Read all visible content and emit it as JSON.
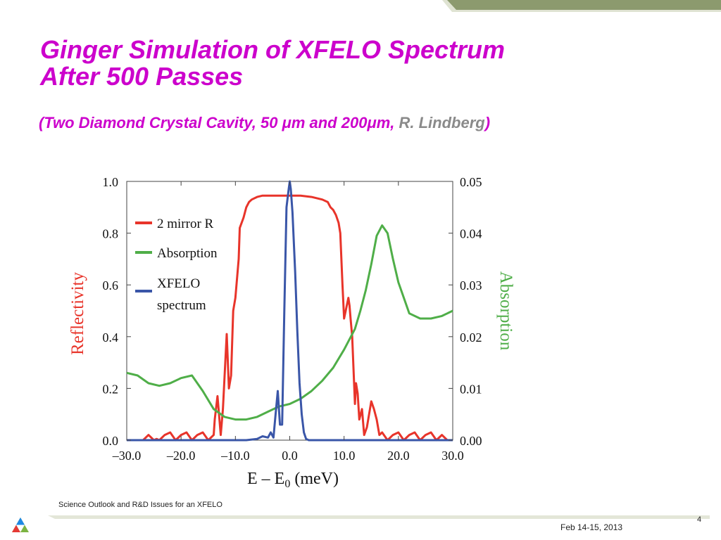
{
  "slide": {
    "title_line1": "Ginger Simulation of XFELO Spectrum",
    "title_line2": "After 500 Passes",
    "subtitle_open": "(",
    "subtitle_main": "Two Diamond Crystal Cavity, 50 μm and 200μm, ",
    "subtitle_author": "R. Lindberg",
    "subtitle_close": ")",
    "footer_text": "Science Outlook and R&D Issues for an XFELO",
    "footer_date": "Feb 14-15, 2013",
    "page_number": "4"
  },
  "colors": {
    "title": "#cc00cc",
    "reflectivity": "#e8342a",
    "absorption": "#4fae48",
    "spectrum": "#3a56a8",
    "top_bar": "#8c9a6e"
  },
  "chart_data": {
    "type": "line",
    "xlabel_main": "E – E",
    "xlabel_sub": "0",
    "xlabel_unit": " (meV)",
    "ylabel_left": "Reflectivity",
    "ylabel_right": "Absorption",
    "xlim": [
      -30,
      30
    ],
    "ylim_left": [
      0,
      1
    ],
    "ylim_right": [
      0,
      0.05
    ],
    "xticks": [
      "–30.0",
      "–20.0",
      "–10.0",
      "0.0",
      "10.0",
      "20.0",
      "30.0"
    ],
    "yticks_left": [
      "0.0",
      "0.2",
      "0.4",
      "0.6",
      "0.8",
      "1.0"
    ],
    "yticks_right": [
      "0.00",
      "0.01",
      "0.02",
      "0.03",
      "0.04",
      "0.05"
    ],
    "legend_position": "top-left",
    "legend": [
      {
        "label": "2 mirror R",
        "color": "#e8342a"
      },
      {
        "label": "Absorption",
        "color": "#4fae48"
      },
      {
        "label_line1": "XFELO",
        "label_line2": "spectrum",
        "color": "#3a56a8"
      }
    ],
    "series": [
      {
        "name": "2 mirror R",
        "axis": "left",
        "color": "#e8342a",
        "x": [
          -30,
          -27,
          -26,
          -25,
          -24.5,
          -24,
          -23,
          -22,
          -21,
          -20,
          -19,
          -18,
          -17,
          -16,
          -15,
          -14,
          -13.8,
          -13.3,
          -12.7,
          -12.3,
          -11.6,
          -11.2,
          -10.8,
          -10.4,
          -10,
          -9.4,
          -9.2,
          -8.5,
          -8,
          -7.5,
          -7,
          -6,
          -5,
          -4,
          -2,
          0,
          2,
          4,
          6,
          7,
          7.5,
          8,
          8.5,
          9,
          9.3,
          9.7,
          10,
          10.3,
          10.8,
          11,
          11.2,
          11.5,
          12,
          12.2,
          12.5,
          12.8,
          13.3,
          13.7,
          14.2,
          15,
          15.5,
          16,
          16.5,
          17,
          18,
          19,
          20,
          21,
          22,
          23,
          24,
          25,
          26,
          27,
          28,
          29,
          30
        ],
        "y": [
          0,
          0,
          0.02,
          0,
          0.005,
          0,
          0.02,
          0.03,
          0,
          0.02,
          0.03,
          0,
          0.02,
          0.03,
          0,
          0.02,
          0.08,
          0.17,
          0.02,
          0.12,
          0.41,
          0.2,
          0.25,
          0.5,
          0.55,
          0.7,
          0.82,
          0.86,
          0.9,
          0.92,
          0.93,
          0.94,
          0.945,
          0.945,
          0.945,
          0.945,
          0.945,
          0.94,
          0.93,
          0.92,
          0.9,
          0.89,
          0.87,
          0.84,
          0.8,
          0.6,
          0.47,
          0.5,
          0.55,
          0.52,
          0.47,
          0.4,
          0.14,
          0.22,
          0.18,
          0.08,
          0.12,
          0.02,
          0.05,
          0.15,
          0.12,
          0.08,
          0.02,
          0.03,
          0,
          0.02,
          0.03,
          0,
          0.02,
          0.03,
          0,
          0.02,
          0.03,
          0,
          0.02,
          0,
          0
        ]
      },
      {
        "name": "Absorption",
        "axis": "right",
        "color": "#4fae48",
        "x": [
          -30,
          -28,
          -26,
          -24,
          -22,
          -20,
          -18,
          -16,
          -14,
          -12,
          -10,
          -8,
          -6,
          -4,
          -2,
          0,
          2,
          4,
          6,
          8,
          10,
          12,
          13,
          14,
          15,
          16,
          17,
          18,
          19,
          20,
          22,
          24,
          26,
          28,
          30
        ],
        "y": [
          0.013,
          0.0125,
          0.011,
          0.0105,
          0.011,
          0.012,
          0.0125,
          0.0095,
          0.006,
          0.0045,
          0.004,
          0.004,
          0.0045,
          0.0055,
          0.0065,
          0.007,
          0.008,
          0.0095,
          0.0115,
          0.014,
          0.0175,
          0.0215,
          0.025,
          0.029,
          0.034,
          0.0395,
          0.0415,
          0.04,
          0.035,
          0.0305,
          0.0245,
          0.0235,
          0.0235,
          0.024,
          0.025
        ]
      },
      {
        "name": "XFELO spectrum",
        "axis": "left",
        "color": "#3a56a8",
        "x": [
          -30,
          -8,
          -6,
          -5,
          -4,
          -3.5,
          -3,
          -2.6,
          -2.2,
          -1.8,
          -1.4,
          -1,
          -0.6,
          -0.2,
          0,
          0.2,
          0.5,
          1,
          1.4,
          1.8,
          2.2,
          2.6,
          3,
          3.5,
          4,
          5,
          6,
          8,
          30
        ],
        "y": [
          0,
          0,
          0.005,
          0.015,
          0.01,
          0.03,
          0.01,
          0.1,
          0.19,
          0.06,
          0.06,
          0.5,
          0.9,
          0.97,
          1.0,
          0.97,
          0.88,
          0.65,
          0.42,
          0.22,
          0.1,
          0.03,
          0.005,
          0,
          0,
          0,
          0,
          0,
          0
        ]
      }
    ]
  }
}
